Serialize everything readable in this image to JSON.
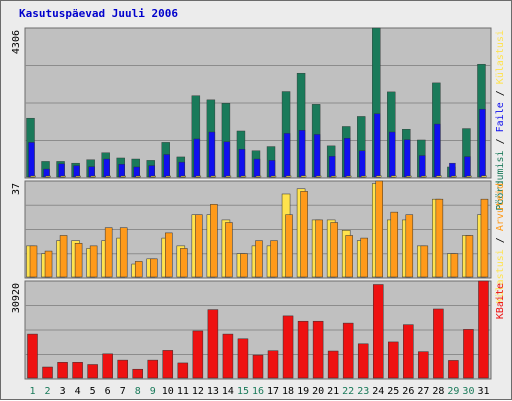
{
  "title": "Kasutuspäevad Juuli 2006",
  "colors": {
    "background": "#ececec",
    "panel": "#c0c0c0",
    "grid": "#8c8c8c",
    "border": "#6b6b6b",
    "title": "#0000cc",
    "pages": "#1a7a5a",
    "files": "#1010ee",
    "hits_pages_bar": "#ffe34d",
    "hits_files_bar": "#ff9a1a",
    "kbytes": "#ee1111",
    "weekday_label": "#000000",
    "weekend_label": "#1a7a5a"
  },
  "chart_data": [
    {
      "type": "bar",
      "name": "panel-requests",
      "ymax_label": "4306",
      "ylim": [
        0,
        4306
      ],
      "right_label_parts": [
        {
          "text": "Pöördumisi",
          "color": "#1a7a5a"
        },
        {
          "text": " / ",
          "color": "#000000"
        },
        {
          "text": "Faile",
          "color": "#1010ee"
        },
        {
          "text": " / ",
          "color": "#000000"
        },
        {
          "text": "Külastusi",
          "color": "#ffe34d"
        }
      ],
      "series": [
        {
          "name": "Pöördumisi",
          "values": [
            1700,
            450,
            450,
            400,
            500,
            700,
            550,
            520,
            480,
            1000,
            580,
            2350,
            2230,
            2130,
            1330,
            760,
            880,
            2470,
            3000,
            2100,
            900,
            1460,
            1750,
            4306,
            2460,
            1380,
            1070,
            2720,
            290,
            1400,
            3260
          ]
        },
        {
          "name": "Faile",
          "values": [
            1000,
            230,
            380,
            330,
            300,
            520,
            370,
            290,
            330,
            650,
            430,
            1100,
            1300,
            1020,
            800,
            520,
            480,
            1260,
            1350,
            1230,
            600,
            1120,
            760,
            1830,
            1300,
            1080,
            620,
            1530,
            400,
            590,
            1960
          ]
        },
        {
          "name": "Külastusi",
          "values": [
            30,
            8,
            8,
            7,
            8,
            10,
            9,
            8,
            8,
            10,
            9,
            30,
            30,
            30,
            20,
            9,
            12,
            32,
            34,
            30,
            10,
            25,
            28,
            36,
            34,
            13,
            9,
            35,
            6,
            14,
            35
          ]
        }
      ]
    },
    {
      "type": "bar",
      "name": "panel-visits",
      "ymax_label": "37",
      "ylim": [
        0,
        37
      ],
      "right_label_parts": [
        {
          "text": "Külastusi",
          "color": "#ffe34d"
        },
        {
          "text": " / ",
          "color": "#000000"
        },
        {
          "text": "Arvuteid",
          "color": "#ff9a1a"
        }
      ],
      "series": [
        {
          "name": "Külastusi",
          "values": [
            12,
            9,
            14,
            14,
            11,
            14,
            15,
            5,
            7,
            15,
            12,
            24,
            24,
            22,
            9,
            12,
            12,
            32,
            34,
            22,
            22,
            18,
            14,
            36,
            22,
            22,
            12,
            30,
            9,
            16,
            24
          ]
        },
        {
          "name": "Arvuteid",
          "values": [
            12,
            10,
            16,
            13,
            12,
            19,
            19,
            6,
            7,
            17,
            11,
            24,
            28,
            21,
            9,
            14,
            14,
            24,
            33,
            22,
            21,
            16,
            15,
            37,
            25,
            24,
            12,
            30,
            9,
            16,
            30
          ]
        }
      ]
    },
    {
      "type": "bar",
      "name": "panel-kbytes",
      "ymax_label": "30920",
      "ylim": [
        0,
        30920
      ],
      "right_label_parts": [
        {
          "text": "KBaite",
          "color": "#ee1111"
        }
      ],
      "series": [
        {
          "name": "KBaite",
          "values": [
            14000,
            3500,
            5000,
            5000,
            4300,
            7700,
            5700,
            2800,
            5700,
            8800,
            4800,
            15000,
            21800,
            14000,
            12500,
            7300,
            8700,
            19800,
            18100,
            18100,
            8600,
            17500,
            10900,
            29800,
            11500,
            17000,
            8400,
            22000,
            5600,
            15500,
            30920
          ]
        }
      ]
    }
  ],
  "days": [
    {
      "label": "1",
      "weekend": true
    },
    {
      "label": "2",
      "weekend": true
    },
    {
      "label": "3",
      "weekend": false
    },
    {
      "label": "4",
      "weekend": false
    },
    {
      "label": "5",
      "weekend": false
    },
    {
      "label": "6",
      "weekend": false
    },
    {
      "label": "7",
      "weekend": false
    },
    {
      "label": "8",
      "weekend": true
    },
    {
      "label": "9",
      "weekend": true
    },
    {
      "label": "10",
      "weekend": false
    },
    {
      "label": "11",
      "weekend": false
    },
    {
      "label": "12",
      "weekend": false
    },
    {
      "label": "13",
      "weekend": false
    },
    {
      "label": "14",
      "weekend": false
    },
    {
      "label": "15",
      "weekend": true
    },
    {
      "label": "16",
      "weekend": true
    },
    {
      "label": "17",
      "weekend": false
    },
    {
      "label": "18",
      "weekend": false
    },
    {
      "label": "19",
      "weekend": false
    },
    {
      "label": "20",
      "weekend": false
    },
    {
      "label": "21",
      "weekend": false
    },
    {
      "label": "22",
      "weekend": true
    },
    {
      "label": "23",
      "weekend": true
    },
    {
      "label": "24",
      "weekend": false
    },
    {
      "label": "25",
      "weekend": false
    },
    {
      "label": "26",
      "weekend": false
    },
    {
      "label": "27",
      "weekend": false
    },
    {
      "label": "28",
      "weekend": false
    },
    {
      "label": "29",
      "weekend": true
    },
    {
      "label": "30",
      "weekend": true
    },
    {
      "label": "31",
      "weekend": false
    }
  ]
}
